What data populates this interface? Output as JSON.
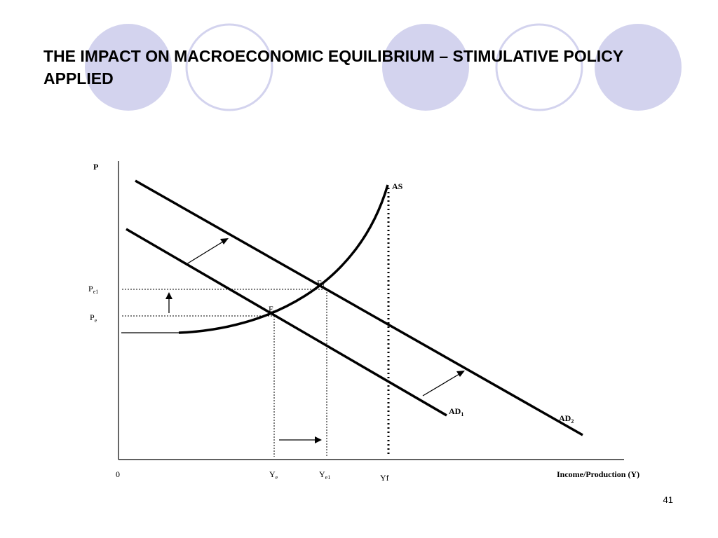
{
  "slide": {
    "title": "THE IMPACT ON MACROECONOMIC EQUILIBRIUM – STIMULATIVE POLICY APPLIED",
    "number": "41",
    "circle_fill": "#d3d3ee",
    "circle_stroke": "#d3d3ee"
  },
  "diagram": {
    "y_axis_label": "P",
    "x_axis_label": "Income/Production (Y)",
    "origin_label": "0",
    "as_label": "AS",
    "ad1_label": {
      "main": "AD",
      "sub": "1"
    },
    "ad2_label": {
      "main": "AD",
      "sub": "2"
    },
    "pe_label": {
      "main": "P",
      "sub": "e"
    },
    "pe1_label": {
      "main": "P",
      "sub": "e1"
    },
    "e_label": "E",
    "e1_label": {
      "main": "E",
      "sub": "1"
    },
    "ye_label": {
      "main": "Y",
      "sub": "e"
    },
    "ye1_label": {
      "main": "Y",
      "sub": "e1"
    },
    "yf_label": "Yf"
  }
}
